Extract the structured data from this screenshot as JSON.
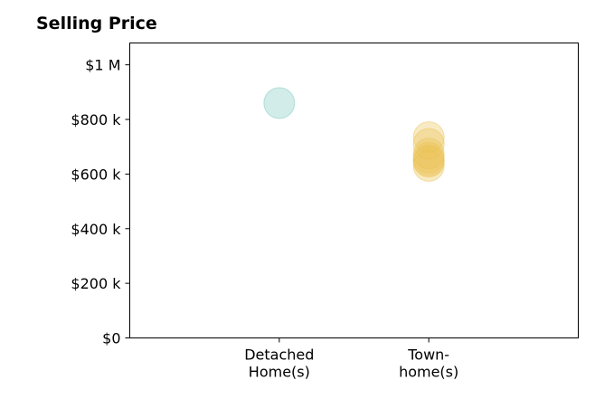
{
  "chart_data": {
    "type": "scatter",
    "title": "Selling Price",
    "xlabel": "",
    "ylabel": "",
    "categories": [
      {
        "lines": [
          "Detached",
          "Home(s)"
        ]
      },
      {
        "lines": [
          "Town-",
          "home(s)"
        ]
      }
    ],
    "series": [
      {
        "category_index": 0,
        "color": "#7ec8bf",
        "values": [
          860000
        ]
      },
      {
        "category_index": 1,
        "color": "#ecc456",
        "values": [
          735000,
          710000,
          675000,
          660000,
          650000,
          645000,
          630000
        ]
      }
    ],
    "yticks": [
      {
        "value": 0,
        "label": "$0"
      },
      {
        "value": 200000,
        "label": "$200 k"
      },
      {
        "value": 400000,
        "label": "$400 k"
      },
      {
        "value": 600000,
        "label": "$600 k"
      },
      {
        "value": 800000,
        "label": "$800 k"
      },
      {
        "value": 1000000,
        "label": "$1 M"
      }
    ],
    "ylim": [
      0,
      1080000
    ],
    "xlim": [
      -1,
      2
    ],
    "grid": false,
    "legend": "none"
  }
}
